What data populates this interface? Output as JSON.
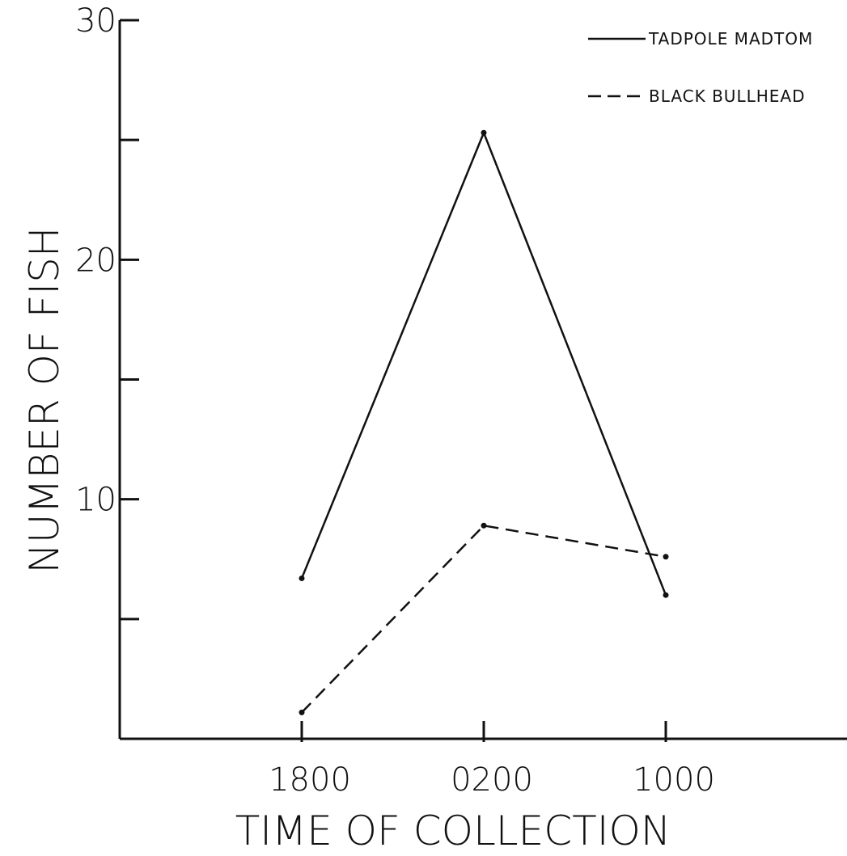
{
  "chart_data": {
    "type": "line",
    "title": "",
    "xlabel": "TIME OF COLLECTION",
    "ylabel": "NUMBER OF FISH",
    "categories": [
      "1800",
      "0200",
      "1000"
    ],
    "ylim": [
      0,
      30
    ],
    "y_ticks": [
      5,
      10,
      15,
      20,
      25,
      30
    ],
    "y_tick_labels": [
      {
        "value": 10,
        "label": "10"
      },
      {
        "value": 20,
        "label": "20"
      },
      {
        "value": 30,
        "label": "30"
      }
    ],
    "grid": false,
    "legend_position": "top-right",
    "series": [
      {
        "name": "TADPOLE MADTOM",
        "style": "solid",
        "color": "#111111",
        "values": [
          6.7,
          25.3,
          6.0
        ]
      },
      {
        "name": "BLACK BULLHEAD",
        "style": "dashed",
        "color": "#111111",
        "values": [
          1.1,
          8.9,
          7.6
        ]
      }
    ]
  }
}
